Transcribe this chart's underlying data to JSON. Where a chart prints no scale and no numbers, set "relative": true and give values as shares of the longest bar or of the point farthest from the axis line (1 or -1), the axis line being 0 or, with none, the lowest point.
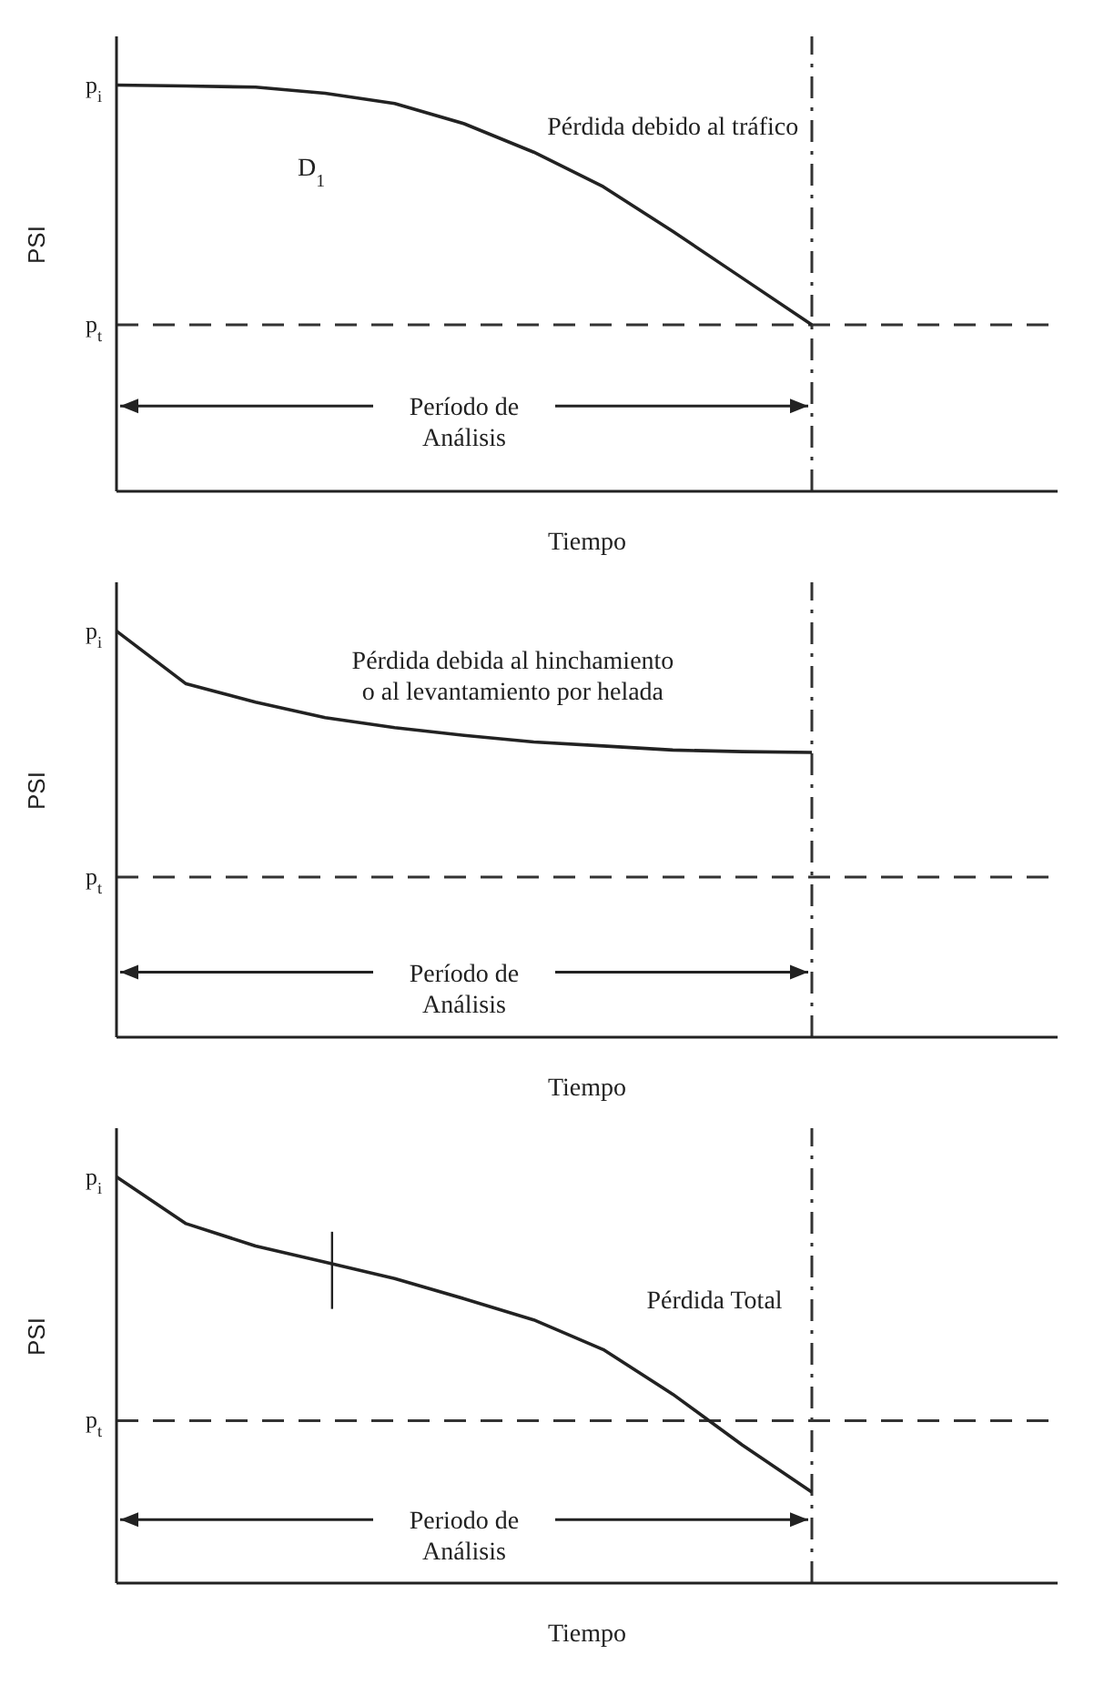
{
  "chart_data": [
    {
      "type": "line",
      "relative": true,
      "xlabel": "Tiempo",
      "ylabel": "PSI",
      "line_style": "solid",
      "marker": "none",
      "categories": [
        null,
        null,
        null,
        null,
        null,
        null,
        null,
        null,
        null,
        null,
        null
      ],
      "series": [
        {
          "color": "#222222",
          "values": [
            1,
            0.998,
            0.995,
            0.98,
            0.955,
            0.905,
            0.835,
            0.75,
            0.64,
            0.525,
            0.41
          ]
        }
      ],
      "ref_lines": [
        {
          "axis": "y",
          "value": 0.41,
          "label": "p$_{t}$",
          "line_style": "dashed",
          "color": "#333333"
        }
      ],
      "annotations": [
        "p$_{i}$",
        "Pérdida debido al tráfico",
        "D$_{1}$",
        "Período de Análisis"
      ]
    },
    {
      "type": "line",
      "relative": true,
      "xlabel": "Tiempo",
      "ylabel": "PSI",
      "line_style": "solid",
      "marker": "none",
      "categories": [
        null,
        null,
        null,
        null,
        null,
        null,
        null,
        null,
        null,
        null,
        null
      ],
      "series": [
        {
          "color": "#222222",
          "values": [
            1,
            0.87,
            0.825,
            0.787,
            0.762,
            0.743,
            0.727,
            0.717,
            0.707,
            0.703,
            0.701
          ]
        }
      ],
      "ref_lines": [
        {
          "axis": "y",
          "value": 0.394,
          "label": "p$_{t}$",
          "line_style": "dashed",
          "color": "#333333"
        }
      ],
      "annotations": [
        "p$_{i}$",
        "Pérdida debida al hinchamiento o al levantamiento por helada",
        "Período de Análisis"
      ]
    },
    {
      "type": "line",
      "relative": true,
      "xlabel": "Tiempo",
      "ylabel": "PSI",
      "line_style": "solid",
      "marker": "none",
      "categories": [
        null,
        null,
        null,
        null,
        null,
        null,
        null,
        null,
        null,
        null,
        null
      ],
      "series": [
        {
          "color": "#222222",
          "values": [
            1,
            0.885,
            0.83,
            0.79,
            0.75,
            0.7,
            0.648,
            0.575,
            0.465,
            0.34,
            0.224
          ]
        }
      ],
      "ref_lines": [
        {
          "axis": "y",
          "value": 0.4,
          "label": "p$_{t}$",
          "line_style": "dashed",
          "color": "#333333"
        }
      ],
      "annotations": [
        "p$_{i}$",
        "Pérdida Total",
        "Periodo de Análisis"
      ]
    }
  ]
}
